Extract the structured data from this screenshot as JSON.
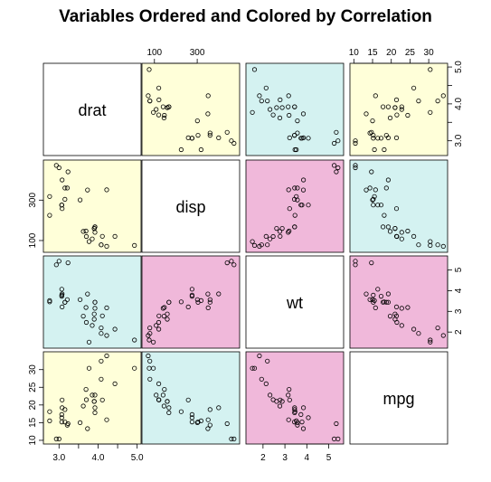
{
  "chart_data": {
    "type": "scatter",
    "title": "Variables Ordered and Colored by Correlation",
    "variables": [
      "drat",
      "disp",
      "wt",
      "mpg"
    ],
    "panel_colors": {
      "drat|disp": "#FFFFD9",
      "drat|wt": "#D4F2F1",
      "drat|mpg": "#FFFFD9",
      "disp|wt": "#F0B8DA",
      "disp|mpg": "#D4F2F1",
      "wt|mpg": "#F0B8DA"
    },
    "axes": {
      "drat": {
        "range": [
          2.7,
          5.0
        ],
        "ticks": [
          3.0,
          3.5,
          4.0,
          4.5,
          5.0
        ],
        "labels": [
          "3.0",
          "",
          "4.0",
          "",
          "5.0"
        ]
      },
      "disp": {
        "range": [
          60,
          480
        ],
        "ticks": [
          100,
          300
        ],
        "labels": [
          "100",
          "300"
        ]
      },
      "wt": {
        "range": [
          1.4,
          5.5
        ],
        "ticks": [
          2,
          3,
          4,
          5
        ],
        "labels": [
          "2",
          "3",
          "4",
          "5"
        ]
      },
      "mpg": {
        "range": [
          10,
          34
        ],
        "ticks": [
          10,
          15,
          20,
          25,
          30
        ],
        "labels": [
          "10",
          "15",
          "20",
          "25",
          "30"
        ]
      }
    },
    "data": {
      "mpg": [
        21.0,
        21.0,
        22.8,
        21.4,
        18.7,
        18.1,
        14.3,
        24.4,
        22.8,
        19.2,
        17.8,
        16.4,
        17.3,
        15.2,
        10.4,
        10.4,
        14.7,
        32.4,
        30.4,
        33.9,
        21.5,
        15.5,
        15.2,
        13.3,
        19.2,
        27.3,
        26.0,
        30.4,
        15.8,
        19.7,
        15.0,
        21.4
      ],
      "disp": [
        160,
        160,
        108,
        258,
        360,
        225,
        360,
        146.7,
        140.8,
        167.6,
        167.6,
        275.8,
        275.8,
        275.8,
        472,
        460,
        440,
        78.7,
        75.7,
        71.1,
        120.1,
        318,
        304,
        350,
        400,
        79,
        120.3,
        95.1,
        351,
        145,
        301,
        121
      ],
      "drat": [
        3.9,
        3.9,
        3.85,
        3.08,
        3.15,
        2.76,
        3.21,
        3.69,
        3.92,
        3.92,
        3.92,
        3.07,
        3.07,
        3.07,
        2.93,
        3.0,
        3.23,
        4.08,
        4.93,
        4.22,
        3.7,
        2.76,
        3.15,
        3.73,
        3.08,
        4.08,
        4.43,
        3.77,
        4.22,
        3.62,
        3.54,
        4.11
      ],
      "wt": [
        2.62,
        2.875,
        2.32,
        3.215,
        3.44,
        3.46,
        3.57,
        3.19,
        3.15,
        3.44,
        3.44,
        4.07,
        3.73,
        3.78,
        5.25,
        5.424,
        5.345,
        2.2,
        1.615,
        1.835,
        2.465,
        3.52,
        3.435,
        3.84,
        3.845,
        1.935,
        2.14,
        1.513,
        3.17,
        2.77,
        3.57,
        2.78
      ]
    }
  }
}
